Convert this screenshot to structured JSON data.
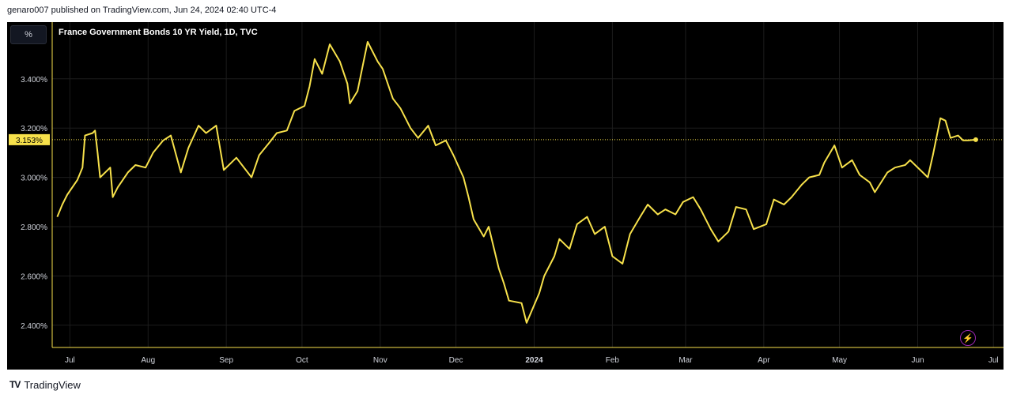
{
  "header": {
    "published": "genaro007 published on TradingView.com, Jun 24, 2024 02:40 UTC-4"
  },
  "footer": {
    "brand": "TradingView",
    "logo": "TV"
  },
  "toolbar": {
    "unit_label": "%"
  },
  "colors": {
    "background": "#000000",
    "line": "#f7e14b",
    "axis": "#f7e14b",
    "grid": "#1c1c1c",
    "text": "#d1d4dc"
  },
  "icons": {
    "flash": "lightning-bolt-icon"
  },
  "chart_data": {
    "type": "line",
    "title": "France Government Bonds 10 YR Yield, 1D, TVC",
    "current_value_label": "3.153%",
    "current_value": 3.153,
    "ylim": [
      2.31,
      3.63
    ],
    "y_ticks": [
      "3.400%",
      "3.200%",
      "3.000%",
      "2.800%",
      "2.600%",
      "2.400%"
    ],
    "y_tick_values": [
      3.4,
      3.2,
      3.0,
      2.8,
      2.6,
      2.4
    ],
    "x_ticks": [
      "Jul",
      "Aug",
      "Sep",
      "Oct",
      "Nov",
      "Dec",
      "2024",
      "Feb",
      "Mar",
      "Apr",
      "May",
      "Jun",
      "Jul"
    ],
    "x_tick_values": [
      "2023-07-01",
      "2023-08-01",
      "2023-09-01",
      "2023-10-01",
      "2023-11-01",
      "2023-12-01",
      "2024-01-01",
      "2024-02-01",
      "2024-03-01",
      "2024-04-01",
      "2024-05-01",
      "2024-06-01",
      "2024-07-01"
    ],
    "x_range": [
      "2023-06-24",
      "2024-07-05"
    ],
    "grid": true,
    "series": [
      {
        "values": [
          [
            "2023-06-26",
            2.84
          ],
          [
            "2023-06-28",
            2.89
          ],
          [
            "2023-06-30",
            2.93
          ],
          [
            "2023-07-04",
            2.99
          ],
          [
            "2023-07-06",
            3.04
          ],
          [
            "2023-07-07",
            3.17
          ],
          [
            "2023-07-10",
            3.18
          ],
          [
            "2023-07-11",
            3.19
          ],
          [
            "2023-07-12",
            3.1
          ],
          [
            "2023-07-13",
            3.0
          ],
          [
            "2023-07-17",
            3.04
          ],
          [
            "2023-07-18",
            2.92
          ],
          [
            "2023-07-20",
            2.96
          ],
          [
            "2023-07-24",
            3.02
          ],
          [
            "2023-07-27",
            3.05
          ],
          [
            "2023-07-31",
            3.04
          ],
          [
            "2023-08-03",
            3.1
          ],
          [
            "2023-08-07",
            3.15
          ],
          [
            "2023-08-10",
            3.17
          ],
          [
            "2023-08-14",
            3.02
          ],
          [
            "2023-08-17",
            3.12
          ],
          [
            "2023-08-21",
            3.21
          ],
          [
            "2023-08-24",
            3.18
          ],
          [
            "2023-08-28",
            3.21
          ],
          [
            "2023-08-31",
            3.03
          ],
          [
            "2023-09-05",
            3.08
          ],
          [
            "2023-09-08",
            3.04
          ],
          [
            "2023-09-11",
            3.0
          ],
          [
            "2023-09-14",
            3.09
          ],
          [
            "2023-09-18",
            3.14
          ],
          [
            "2023-09-21",
            3.18
          ],
          [
            "2023-09-25",
            3.19
          ],
          [
            "2023-09-28",
            3.27
          ],
          [
            "2023-10-02",
            3.29
          ],
          [
            "2023-10-04",
            3.37
          ],
          [
            "2023-10-06",
            3.48
          ],
          [
            "2023-10-09",
            3.42
          ],
          [
            "2023-10-12",
            3.54
          ],
          [
            "2023-10-16",
            3.47
          ],
          [
            "2023-10-19",
            3.38
          ],
          [
            "2023-10-20",
            3.3
          ],
          [
            "2023-10-23",
            3.35
          ],
          [
            "2023-10-25",
            3.45
          ],
          [
            "2023-10-27",
            3.55
          ],
          [
            "2023-10-31",
            3.47
          ],
          [
            "2023-11-02",
            3.44
          ],
          [
            "2023-11-06",
            3.32
          ],
          [
            "2023-11-09",
            3.28
          ],
          [
            "2023-11-13",
            3.2
          ],
          [
            "2023-11-16",
            3.16
          ],
          [
            "2023-11-20",
            3.21
          ],
          [
            "2023-11-23",
            3.13
          ],
          [
            "2023-11-27",
            3.15
          ],
          [
            "2023-11-30",
            3.09
          ],
          [
            "2023-12-04",
            3.0
          ],
          [
            "2023-12-06",
            2.92
          ],
          [
            "2023-12-08",
            2.83
          ],
          [
            "2023-12-12",
            2.76
          ],
          [
            "2023-12-14",
            2.8
          ],
          [
            "2023-12-18",
            2.63
          ],
          [
            "2023-12-20",
            2.57
          ],
          [
            "2023-12-22",
            2.5
          ],
          [
            "2023-12-27",
            2.49
          ],
          [
            "2023-12-29",
            2.41
          ],
          [
            "2024-01-03",
            2.53
          ],
          [
            "2024-01-05",
            2.6
          ],
          [
            "2024-01-09",
            2.68
          ],
          [
            "2024-01-11",
            2.75
          ],
          [
            "2024-01-15",
            2.71
          ],
          [
            "2024-01-18",
            2.81
          ],
          [
            "2024-01-22",
            2.84
          ],
          [
            "2024-01-25",
            2.77
          ],
          [
            "2024-01-29",
            2.8
          ],
          [
            "2024-02-01",
            2.68
          ],
          [
            "2024-02-05",
            2.65
          ],
          [
            "2024-02-08",
            2.77
          ],
          [
            "2024-02-12",
            2.84
          ],
          [
            "2024-02-15",
            2.89
          ],
          [
            "2024-02-19",
            2.85
          ],
          [
            "2024-02-22",
            2.87
          ],
          [
            "2024-02-26",
            2.85
          ],
          [
            "2024-02-29",
            2.9
          ],
          [
            "2024-03-04",
            2.92
          ],
          [
            "2024-03-07",
            2.87
          ],
          [
            "2024-03-11",
            2.79
          ],
          [
            "2024-03-14",
            2.74
          ],
          [
            "2024-03-18",
            2.78
          ],
          [
            "2024-03-21",
            2.88
          ],
          [
            "2024-03-25",
            2.87
          ],
          [
            "2024-03-28",
            2.79
          ],
          [
            "2024-04-02",
            2.81
          ],
          [
            "2024-04-05",
            2.91
          ],
          [
            "2024-04-09",
            2.89
          ],
          [
            "2024-04-12",
            2.92
          ],
          [
            "2024-04-16",
            2.97
          ],
          [
            "2024-04-19",
            3.0
          ],
          [
            "2024-04-23",
            3.01
          ],
          [
            "2024-04-25",
            3.06
          ],
          [
            "2024-04-29",
            3.13
          ],
          [
            "2024-05-02",
            3.04
          ],
          [
            "2024-05-06",
            3.07
          ],
          [
            "2024-05-09",
            3.01
          ],
          [
            "2024-05-13",
            2.98
          ],
          [
            "2024-05-15",
            2.94
          ],
          [
            "2024-05-20",
            3.02
          ],
          [
            "2024-05-23",
            3.04
          ],
          [
            "2024-05-27",
            3.05
          ],
          [
            "2024-05-29",
            3.07
          ],
          [
            "2024-06-03",
            3.02
          ],
          [
            "2024-06-05",
            3.0
          ],
          [
            "2024-06-07",
            3.09
          ],
          [
            "2024-06-10",
            3.24
          ],
          [
            "2024-06-12",
            3.23
          ],
          [
            "2024-06-14",
            3.16
          ],
          [
            "2024-06-17",
            3.17
          ],
          [
            "2024-06-19",
            3.15
          ],
          [
            "2024-06-21",
            3.15
          ],
          [
            "2024-06-24",
            3.153
          ]
        ]
      }
    ]
  }
}
